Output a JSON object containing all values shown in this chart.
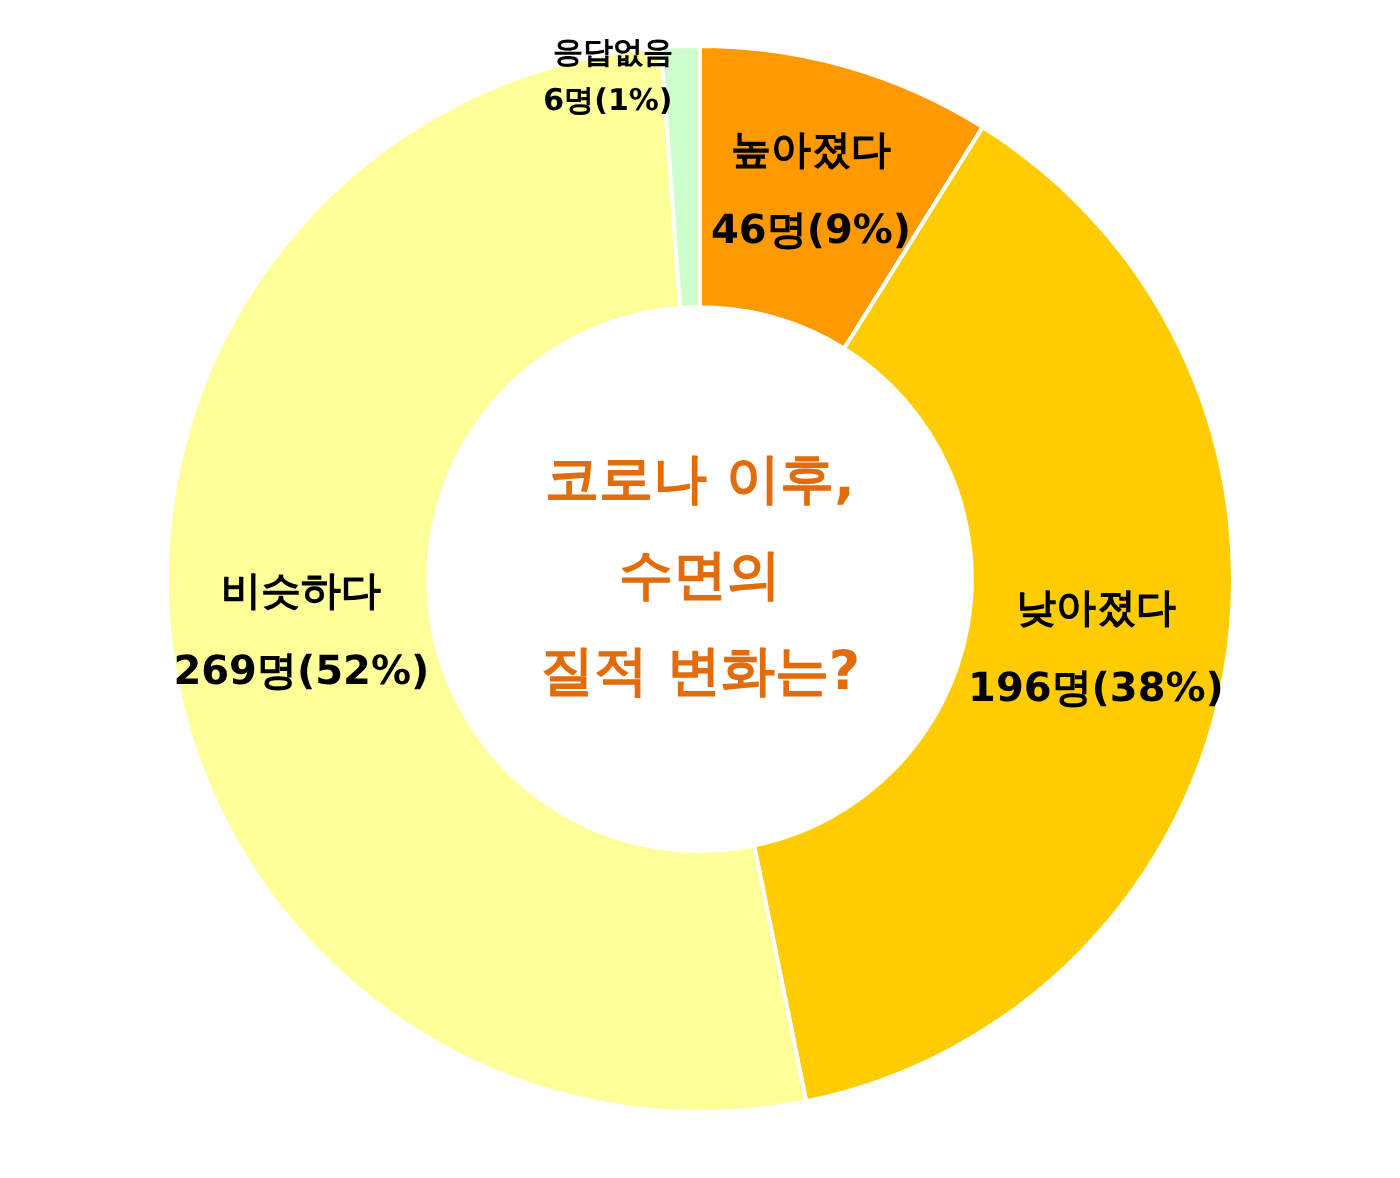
{
  "chart_data": {
    "type": "donut",
    "title": "코로나 이후,\n수면의\n질적 변화는?",
    "categories": [
      "높아졌다",
      "낮아졌다",
      "비슷하다",
      "응답없음"
    ],
    "values": [
      46,
      196,
      269,
      6
    ],
    "value_labels": [
      "46명(9%)",
      "196명(38%)",
      "269명(52%)",
      "6명(1%)"
    ],
    "colors": [
      "#ff9900",
      "#ffcc00",
      "#ffff99",
      "#ccffcc"
    ],
    "legend": false
  }
}
